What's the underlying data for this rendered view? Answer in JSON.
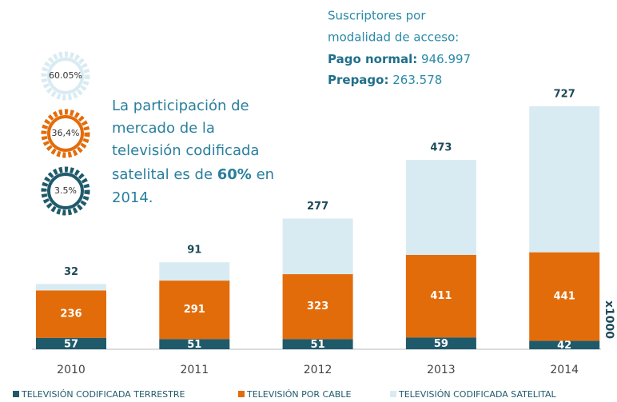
{
  "chart_data": {
    "type": "bar",
    "stacked": true,
    "categories": [
      "2010",
      "2011",
      "2012",
      "2013",
      "2014"
    ],
    "series": [
      {
        "name": "TELEVISIÓN CODIFICADA TERRESTRE",
        "color": "#1f5a6b",
        "values": [
          57,
          51,
          51,
          59,
          42
        ]
      },
      {
        "name": "TELEVISIÓN POR CABLE",
        "color": "#e36c0a",
        "values": [
          236,
          291,
          323,
          411,
          441
        ]
      },
      {
        "name": "TELEVISIÓN CODIFICADA SATELITAL",
        "color": "#d9ebf2",
        "values": [
          32,
          91,
          277,
          473,
          727
        ]
      }
    ],
    "unit_label": "x1000",
    "gears": [
      {
        "label": "60.05%",
        "color": "#d9ebf2"
      },
      {
        "label": "36,4%",
        "color": "#e36c0a"
      },
      {
        "label": "3.5%",
        "color": "#1f5a6b"
      }
    ],
    "statement": [
      "La participación de",
      "mercado de la",
      "televisión codificada",
      "satelital es de ",
      "60%",
      " en",
      "2014."
    ],
    "subscribers": {
      "title": [
        "Suscriptores por",
        "modalidad de acceso:"
      ],
      "items": [
        {
          "label": "Pago normal:",
          "value": "946.997"
        },
        {
          "label": "Prepago:",
          "value": "263.578"
        }
      ]
    }
  }
}
